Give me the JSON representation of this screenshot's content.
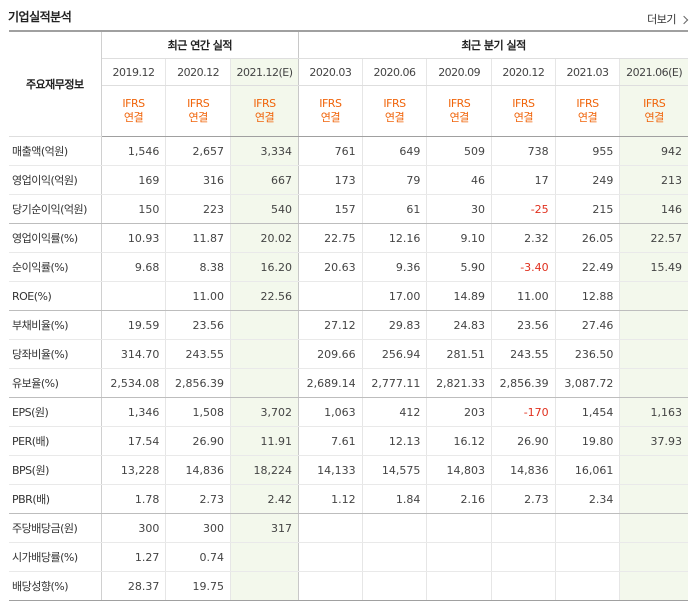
{
  "section_title": "기업실적분석",
  "more_link": "더보기",
  "row_header_label": "주요재무정보",
  "group_annual": "최근 연간 실적",
  "group_quarter": "최근 분기 실적",
  "accounting_top": "IFRS",
  "accounting_bottom": "연결",
  "periods": [
    "2019.12",
    "2020.12",
    "2021.12(E)",
    "2020.03",
    "2020.06",
    "2020.09",
    "2020.12",
    "2021.03",
    "2021.06(E)"
  ],
  "estimate_columns": [
    2,
    8
  ],
  "negative_color": "#e0301e",
  "accent_color": "#f0640a",
  "rows": [
    {
      "label": "매출액(억원)",
      "values": [
        "1,546",
        "2,657",
        "3,334",
        "761",
        "649",
        "509",
        "738",
        "955",
        "942"
      ]
    },
    {
      "label": "영업이익(억원)",
      "values": [
        "169",
        "316",
        "667",
        "173",
        "79",
        "46",
        "17",
        "249",
        "213"
      ]
    },
    {
      "label": "당기순이익(억원)",
      "values": [
        "150",
        "223",
        "540",
        "157",
        "61",
        "30",
        "-25",
        "215",
        "146"
      ]
    },
    {
      "label": "영업이익률(%)",
      "values": [
        "10.93",
        "11.87",
        "20.02",
        "22.75",
        "12.16",
        "9.10",
        "2.32",
        "26.05",
        "22.57"
      ]
    },
    {
      "label": "순이익률(%)",
      "values": [
        "9.68",
        "8.38",
        "16.20",
        "20.63",
        "9.36",
        "5.90",
        "-3.40",
        "22.49",
        "15.49"
      ]
    },
    {
      "label": "ROE(%)",
      "values": [
        "",
        "11.00",
        "22.56",
        "",
        "17.00",
        "14.89",
        "11.00",
        "12.88",
        ""
      ]
    },
    {
      "label": "부채비율(%)",
      "values": [
        "19.59",
        "23.56",
        "",
        "27.12",
        "29.83",
        "24.83",
        "23.56",
        "27.46",
        ""
      ]
    },
    {
      "label": "당좌비율(%)",
      "values": [
        "314.70",
        "243.55",
        "",
        "209.66",
        "256.94",
        "281.51",
        "243.55",
        "236.50",
        ""
      ]
    },
    {
      "label": "유보율(%)",
      "values": [
        "2,534.08",
        "2,856.39",
        "",
        "2,689.14",
        "2,777.11",
        "2,821.33",
        "2,856.39",
        "3,087.72",
        ""
      ]
    },
    {
      "label": "EPS(원)",
      "values": [
        "1,346",
        "1,508",
        "3,702",
        "1,063",
        "412",
        "203",
        "-170",
        "1,454",
        "1,163"
      ]
    },
    {
      "label": "PER(배)",
      "values": [
        "17.54",
        "26.90",
        "11.91",
        "7.61",
        "12.13",
        "16.12",
        "26.90",
        "19.80",
        "37.93"
      ]
    },
    {
      "label": "BPS(원)",
      "values": [
        "13,228",
        "14,836",
        "18,224",
        "14,133",
        "14,575",
        "14,803",
        "14,836",
        "16,061",
        ""
      ]
    },
    {
      "label": "PBR(배)",
      "values": [
        "1.78",
        "2.73",
        "2.42",
        "1.12",
        "1.84",
        "2.16",
        "2.73",
        "2.34",
        ""
      ]
    },
    {
      "label": "주당배당금(원)",
      "values": [
        "300",
        "300",
        "317",
        "",
        "",
        "",
        "",
        "",
        ""
      ]
    },
    {
      "label": "시가배당률(%)",
      "values": [
        "1.27",
        "0.74",
        "",
        "",
        "",
        "",
        "",
        "",
        ""
      ]
    },
    {
      "label": "배당성향(%)",
      "values": [
        "28.37",
        "19.75",
        "",
        "",
        "",
        "",
        "",
        "",
        ""
      ]
    }
  ]
}
